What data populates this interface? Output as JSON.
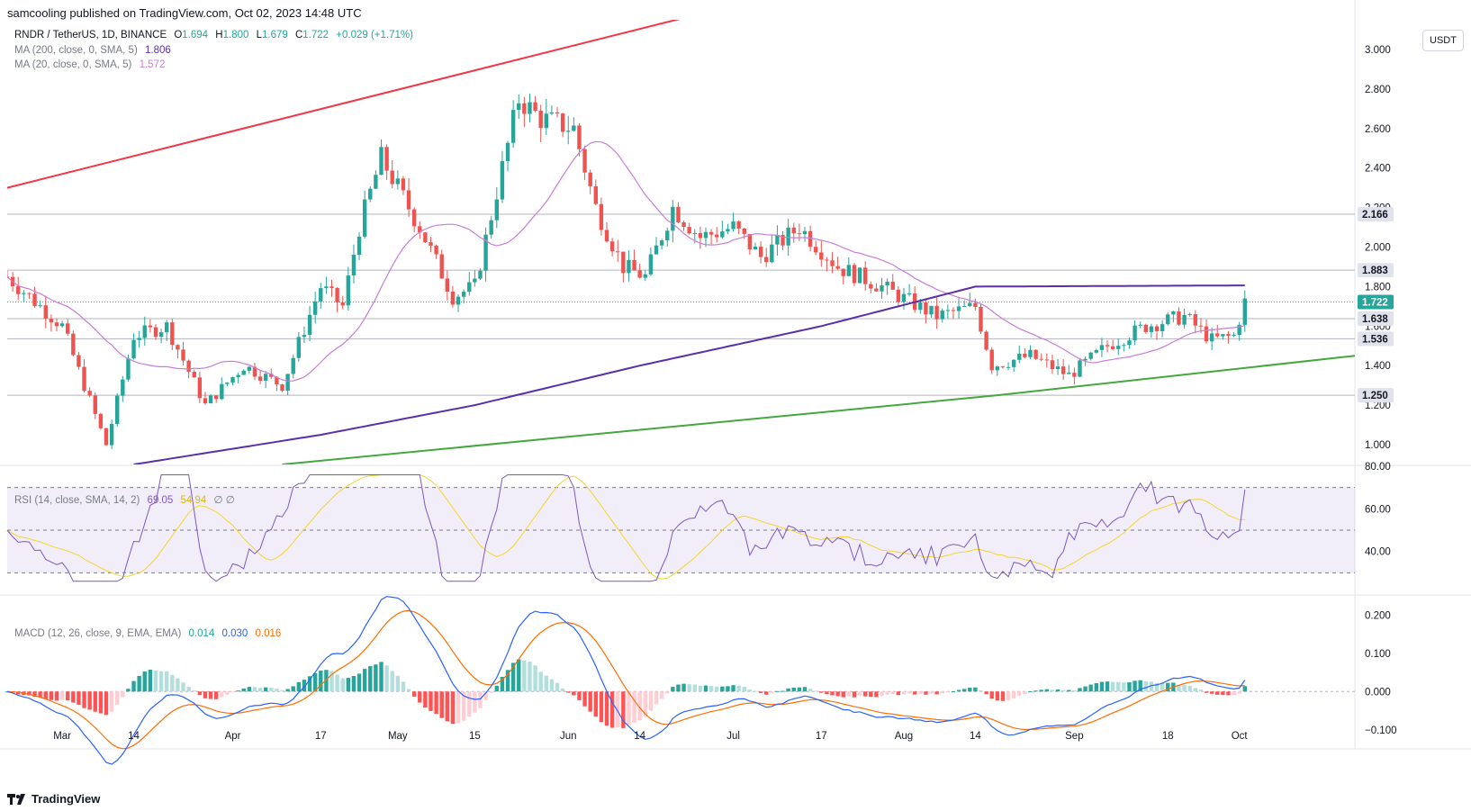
{
  "header": {
    "published": "samcooling published on TradingView.com, Oct 02, 2023 14:48 UTC"
  },
  "legend": {
    "symbol": "RNDR / TetherUS, 1D, BINANCE",
    "o_label": "O",
    "o": "1.694",
    "h_label": "H",
    "h": "1.800",
    "l_label": "L",
    "l": "1.679",
    "c_label": "C",
    "c": "1.722",
    "change": "+0.029 (+1.71%)",
    "ma200_label": "MA (200, close, 0, SMA, 5)",
    "ma200": "1.806",
    "ma20_label": "MA (20, close, 0, SMA, 5)",
    "ma20": "1.572"
  },
  "currency_button": "USDT",
  "price_axis": [
    "3.000",
    "2.800",
    "2.600",
    "2.400",
    "2.200",
    "2.000",
    "1.800",
    "1.600",
    "1.400",
    "1.200",
    "1.000"
  ],
  "price_tags": [
    {
      "value": "2.166",
      "bg": "#e0e3eb",
      "fg": "#131722"
    },
    {
      "value": "1.883",
      "bg": "#e0e3eb",
      "fg": "#131722"
    },
    {
      "value": "1.722",
      "bg": "#26a69a",
      "fg": "#ffffff"
    },
    {
      "value": "1.638",
      "bg": "#e0e3eb",
      "fg": "#131722"
    },
    {
      "value": "1.536",
      "bg": "#e0e3eb",
      "fg": "#131722"
    },
    {
      "value": "1.250",
      "bg": "#e0e3eb",
      "fg": "#131722"
    }
  ],
  "rsi": {
    "label": "RSI (14, close, SMA, 14, 2)",
    "value": "69.05",
    "sma": "54.94",
    "extra": "∅ ∅",
    "axis": [
      "80.00",
      "60.00",
      "40.00"
    ]
  },
  "macd": {
    "label": "MACD (12, 26, close, 9, EMA, EMA)",
    "hist": "0.014",
    "macd": "0.030",
    "signal": "0.016",
    "axis": [
      "0.200",
      "0.100",
      "0.000",
      "−0.100"
    ]
  },
  "time_axis": [
    "Mar",
    "14",
    "Apr",
    "17",
    "May",
    "15",
    "Jun",
    "14",
    "Jul",
    "17",
    "Aug",
    "14",
    "Sep",
    "18",
    "Oct"
  ],
  "brand": "TradingView",
  "colors": {
    "up": "#26a69a",
    "down": "#ef5350",
    "ma200": "#5b2fa8",
    "ma20": "#c77dd6",
    "resistance": "#f23645",
    "support": "#43a83d",
    "rsi": "#7e57c2",
    "rsi_sma": "#f5d42b",
    "macd": "#2962ff",
    "signal": "#ff6d00"
  },
  "chart_data": {
    "type": "candlestick",
    "title": "RNDR / TetherUS, 1D, BINANCE",
    "ylim": [
      0.9,
      3.15
    ],
    "x_range": [
      "2023-02-19",
      "2023-10-22"
    ],
    "horizontal_levels": [
      2.166,
      1.883,
      1.638,
      1.536,
      1.25
    ],
    "close_keypoints": [
      {
        "date": "2023-02-19",
        "value": 1.85
      },
      {
        "date": "2023-03-01",
        "value": 1.6
      },
      {
        "date": "2023-03-09",
        "value": 1.0
      },
      {
        "date": "2023-03-14",
        "value": 1.55
      },
      {
        "date": "2023-03-20",
        "value": 1.6
      },
      {
        "date": "2023-03-27",
        "value": 1.2
      },
      {
        "date": "2023-04-03",
        "value": 1.4
      },
      {
        "date": "2023-04-10",
        "value": 1.3
      },
      {
        "date": "2023-04-17",
        "value": 1.8
      },
      {
        "date": "2023-04-21",
        "value": 1.7
      },
      {
        "date": "2023-04-24",
        "value": 2.1
      },
      {
        "date": "2023-04-28",
        "value": 2.45
      },
      {
        "date": "2023-05-01",
        "value": 2.3
      },
      {
        "date": "2023-05-05",
        "value": 2.1
      },
      {
        "date": "2023-05-11",
        "value": 1.75
      },
      {
        "date": "2023-05-15",
        "value": 1.8
      },
      {
        "date": "2023-05-20",
        "value": 2.4
      },
      {
        "date": "2023-05-23",
        "value": 2.75
      },
      {
        "date": "2023-05-27",
        "value": 2.65
      },
      {
        "date": "2023-06-02",
        "value": 2.6
      },
      {
        "date": "2023-06-06",
        "value": 2.2
      },
      {
        "date": "2023-06-11",
        "value": 1.9
      },
      {
        "date": "2023-06-15",
        "value": 1.85
      },
      {
        "date": "2023-06-20",
        "value": 2.2
      },
      {
        "date": "2023-06-25",
        "value": 2.05
      },
      {
        "date": "2023-07-01",
        "value": 2.1
      },
      {
        "date": "2023-07-06",
        "value": 1.95
      },
      {
        "date": "2023-07-13",
        "value": 2.1
      },
      {
        "date": "2023-07-20",
        "value": 1.9
      },
      {
        "date": "2023-07-28",
        "value": 1.8
      },
      {
        "date": "2023-08-07",
        "value": 1.65
      },
      {
        "date": "2023-08-14",
        "value": 1.7
      },
      {
        "date": "2023-08-17",
        "value": 1.4
      },
      {
        "date": "2023-08-24",
        "value": 1.45
      },
      {
        "date": "2023-08-31",
        "value": 1.35
      },
      {
        "date": "2023-09-07",
        "value": 1.5
      },
      {
        "date": "2023-09-14",
        "value": 1.6
      },
      {
        "date": "2023-09-21",
        "value": 1.65
      },
      {
        "date": "2023-09-26",
        "value": 1.53
      },
      {
        "date": "2023-09-30",
        "value": 1.55
      },
      {
        "date": "2023-10-02",
        "value": 1.722
      }
    ],
    "ma200_keypoints": [
      {
        "date": "2023-03-14",
        "value": 0.9
      },
      {
        "date": "2023-04-17",
        "value": 1.05
      },
      {
        "date": "2023-05-15",
        "value": 1.2
      },
      {
        "date": "2023-06-14",
        "value": 1.4
      },
      {
        "date": "2023-07-17",
        "value": 1.6
      },
      {
        "date": "2023-08-14",
        "value": 1.8
      },
      {
        "date": "2023-10-02",
        "value": 1.806
      }
    ],
    "resistance_line": [
      {
        "date": "2023-02-19",
        "value": 2.3
      },
      {
        "date": "2023-05-23",
        "value": 2.95
      }
    ],
    "support_line": [
      {
        "date": "2023-04-10",
        "value": 0.9
      },
      {
        "date": "2023-08-18",
        "value": 1.25
      },
      {
        "date": "2023-10-22",
        "value": 1.45
      }
    ],
    "rsi_ylim": [
      20,
      80
    ],
    "rsi_bands": [
      70,
      50,
      30
    ],
    "rsi_last": 69.05,
    "rsi_sma_last": 54.94,
    "macd_ylim": [
      -0.15,
      0.25
    ],
    "macd_last": 0.03,
    "signal_last": 0.016,
    "hist_last": 0.014
  }
}
